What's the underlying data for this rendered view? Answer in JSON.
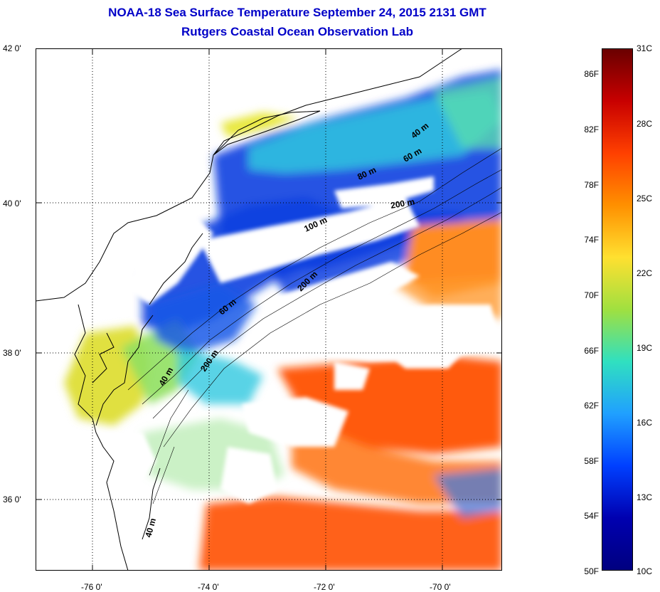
{
  "title": "NOAA-18 Sea Surface Temperature September 24, 2015 2131 GMT",
  "subtitle": "Rutgers Coastal Ocean Observation Lab",
  "lat_ticks": [
    "42 0'",
    "40 0'",
    "38 0'",
    "36 0'"
  ],
  "lon_ticks": [
    "-76 0'",
    "-74 0'",
    "-72 0'",
    "-70 0'"
  ],
  "contour_labels": [
    "40 m",
    "60 m",
    "80 m",
    "200 m",
    "100 m",
    "200 m",
    "60 m",
    "200 m",
    "40 m",
    "40 m"
  ],
  "colorbar": {
    "fahrenheit_labels": [
      "86F",
      "82F",
      "78F",
      "74F",
      "70F",
      "66F",
      "62F",
      "58F",
      "54F",
      "50F"
    ],
    "celsius_labels": [
      "31C",
      "28C",
      "25C",
      "22C",
      "19C",
      "16C",
      "13C",
      "10C"
    ],
    "colors": [
      "#6a0000",
      "#c80000",
      "#ff4000",
      "#ff9000",
      "#ffe030",
      "#a0e040",
      "#30e0c0",
      "#20a0ff",
      "#0040ff",
      "#0000b0",
      "#000080"
    ]
  },
  "palette": {
    "land": "#ffffff",
    "cold": "#1040e0",
    "cool": "#30c8e0",
    "mild": "#e8e840",
    "warm": "#ff5a10",
    "hot": "#ff8c20"
  }
}
